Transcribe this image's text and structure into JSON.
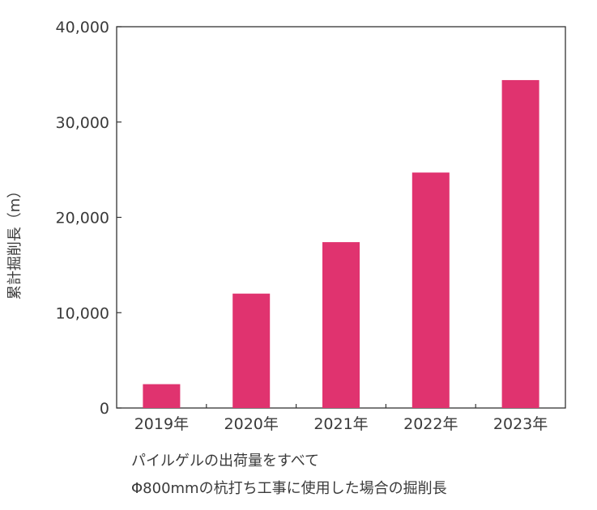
{
  "chart_data": {
    "type": "bar",
    "categories": [
      "2019年",
      "2020年",
      "2021年",
      "2022年",
      "2023年"
    ],
    "values": [
      2500,
      12000,
      17400,
      24700,
      34400
    ],
    "title": "",
    "xlabel": "",
    "ylabel": "累計掘削長（m）",
    "ylim": [
      0,
      40000
    ],
    "yticks": [
      0,
      10000,
      20000,
      30000,
      40000
    ],
    "ytick_labels": [
      "0",
      "10,000",
      "20,000",
      "30,000",
      "40,000"
    ],
    "bar_color": "#e0336f",
    "grid": false,
    "legend": "none"
  },
  "caption": {
    "line1": "パイルゲルの出荷量をすべて",
    "line2": "Φ800mmの杭打ち工事に使用した場合の掘削長"
  }
}
